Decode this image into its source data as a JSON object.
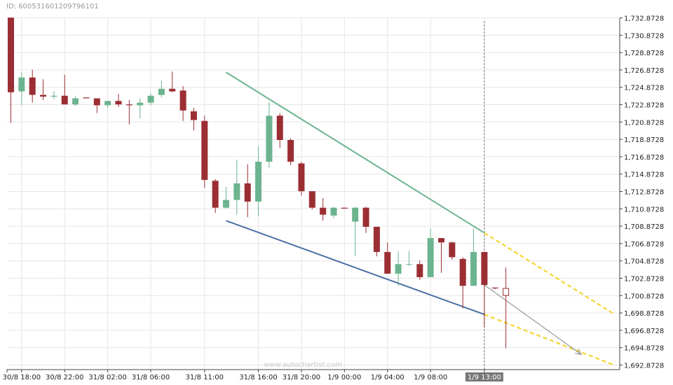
{
  "header": {
    "id_label": "ID: 6005316012097961​01"
  },
  "watermark": "www.autochartist.com",
  "chart_data": {
    "type": "candlestick",
    "y_ticks": [
      "1,732.8728",
      "1,730.8728",
      "1,728.8728",
      "1,726.8728",
      "1,724.8728",
      "1,722.8728",
      "1,720.8728",
      "1,718.8728",
      "1,716.8728",
      "1,714.8728",
      "1,712.8728",
      "1,710.8728",
      "1,708.8728",
      "1,706.8728",
      "1,704.8728",
      "1,702.8728",
      "1,700.8728",
      "1,698.8728",
      "1,696.8728",
      "1,694.8728",
      "1,692.8728"
    ],
    "ylim": [
      1692.8728,
      1732.8728
    ],
    "x_ticks": [
      {
        "label": "30/8 18:00",
        "index": 1
      },
      {
        "label": "30/8 22:00",
        "index": 5
      },
      {
        "label": "31/8 02:00",
        "index": 9
      },
      {
        "label": "31/8 06:00",
        "index": 13
      },
      {
        "label": "31/8 11:00",
        "index": 18
      },
      {
        "label": "31/8 16:00",
        "index": 23
      },
      {
        "label": "31/8 20:00",
        "index": 27
      },
      {
        "label": "1/9 00:00",
        "index": 31
      },
      {
        "label": "1/9 04:00",
        "index": 35
      },
      {
        "label": "1/9 08:00",
        "index": 39
      },
      {
        "label": "1/9 13:00",
        "index": 44,
        "highlight": true
      }
    ],
    "candles": [
      {
        "o": 1732.9,
        "h": 1732.9,
        "l": 1720.8,
        "c": 1724.3
      },
      {
        "o": 1724.4,
        "h": 1726.6,
        "l": 1722.8,
        "c": 1726.0
      },
      {
        "o": 1726.0,
        "h": 1726.9,
        "l": 1723.1,
        "c": 1724.0
      },
      {
        "o": 1724.0,
        "h": 1725.8,
        "l": 1723.4,
        "c": 1723.8
      },
      {
        "o": 1723.8,
        "h": 1724.4,
        "l": 1723.5,
        "c": 1723.9
      },
      {
        "o": 1723.9,
        "h": 1726.3,
        "l": 1722.9,
        "c": 1722.9
      },
      {
        "o": 1722.9,
        "h": 1723.9,
        "l": 1722.7,
        "c": 1723.6
      },
      {
        "o": 1723.7,
        "h": 1723.7,
        "l": 1723.6,
        "c": 1723.6
      },
      {
        "o": 1723.6,
        "h": 1723.6,
        "l": 1721.9,
        "c": 1722.8
      },
      {
        "o": 1722.8,
        "h": 1723.3,
        "l": 1722.5,
        "c": 1723.3
      },
      {
        "o": 1723.3,
        "h": 1724.1,
        "l": 1722.6,
        "c": 1722.9
      },
      {
        "o": 1722.9,
        "h": 1723.4,
        "l": 1720.6,
        "c": 1722.8
      },
      {
        "o": 1722.8,
        "h": 1723.6,
        "l": 1721.3,
        "c": 1723.1
      },
      {
        "o": 1723.1,
        "h": 1724.2,
        "l": 1722.8,
        "c": 1723.9
      },
      {
        "o": 1724.0,
        "h": 1725.6,
        "l": 1723.7,
        "c": 1724.7
      },
      {
        "o": 1724.7,
        "h": 1726.7,
        "l": 1724.3,
        "c": 1724.4
      },
      {
        "o": 1724.5,
        "h": 1725.0,
        "l": 1721.0,
        "c": 1722.2
      },
      {
        "o": 1722.1,
        "h": 1722.5,
        "l": 1719.9,
        "c": 1721.1
      },
      {
        "o": 1721.0,
        "h": 1721.6,
        "l": 1713.3,
        "c": 1714.2
      },
      {
        "o": 1714.1,
        "h": 1714.3,
        "l": 1710.4,
        "c": 1711.0
      },
      {
        "o": 1711.0,
        "h": 1713.4,
        "l": 1710.9,
        "c": 1711.9
      },
      {
        "o": 1711.9,
        "h": 1716.5,
        "l": 1710.2,
        "c": 1713.8
      },
      {
        "o": 1713.8,
        "h": 1716.0,
        "l": 1709.9,
        "c": 1711.7
      },
      {
        "o": 1711.7,
        "h": 1718.1,
        "l": 1710.0,
        "c": 1716.3
      },
      {
        "o": 1716.3,
        "h": 1723.2,
        "l": 1715.6,
        "c": 1721.6
      },
      {
        "o": 1721.6,
        "h": 1721.9,
        "l": 1717.9,
        "c": 1718.8
      },
      {
        "o": 1718.8,
        "h": 1719.0,
        "l": 1715.9,
        "c": 1716.3
      },
      {
        "o": 1716.1,
        "h": 1716.3,
        "l": 1712.4,
        "c": 1712.9
      },
      {
        "o": 1712.9,
        "h": 1712.9,
        "l": 1710.8,
        "c": 1711.0
      },
      {
        "o": 1711.0,
        "h": 1712.1,
        "l": 1709.5,
        "c": 1710.2
      },
      {
        "o": 1710.1,
        "h": 1711.1,
        "l": 1709.8,
        "c": 1711.0
      },
      {
        "o": 1711.0,
        "h": 1711.0,
        "l": 1710.9,
        "c": 1710.9
      },
      {
        "o": 1709.4,
        "h": 1711.1,
        "l": 1705.4,
        "c": 1711.0
      },
      {
        "o": 1711.0,
        "h": 1711.1,
        "l": 1708.1,
        "c": 1708.8
      },
      {
        "o": 1708.8,
        "h": 1708.8,
        "l": 1705.4,
        "c": 1705.9
      },
      {
        "o": 1705.9,
        "h": 1707.0,
        "l": 1703.4,
        "c": 1703.4
      },
      {
        "o": 1703.4,
        "h": 1706.0,
        "l": 1702.0,
        "c": 1704.5
      },
      {
        "o": 1704.5,
        "h": 1706.0,
        "l": 1704.3,
        "c": 1704.5
      },
      {
        "o": 1704.5,
        "h": 1704.9,
        "l": 1702.7,
        "c": 1703.0
      },
      {
        "o": 1703.0,
        "h": 1708.6,
        "l": 1703.0,
        "c": 1707.5
      },
      {
        "o": 1707.5,
        "h": 1707.5,
        "l": 1703.5,
        "c": 1707.0
      },
      {
        "o": 1707.0,
        "h": 1707.1,
        "l": 1705.0,
        "c": 1705.3
      },
      {
        "o": 1705.1,
        "h": 1705.3,
        "l": 1699.4,
        "c": 1702.0
      },
      {
        "o": 1702.0,
        "h": 1708.6,
        "l": 1702.0,
        "c": 1705.9
      },
      {
        "o": 1705.9,
        "h": 1705.9,
        "l": 1697.2,
        "c": 1702.1
      },
      {
        "o": 1701.8,
        "h": 1701.8,
        "l": 1701.6,
        "c": 1701.7
      },
      {
        "o": 1701.7,
        "h": 1704.1,
        "l": 1694.8,
        "c": 1700.9,
        "hollow": true
      }
    ],
    "patterns": {
      "resistance": {
        "from": [
          20,
          1726.6
        ],
        "to": [
          44,
          1708.1
        ],
        "color": "#6cb48f"
      },
      "support": {
        "from": [
          20,
          1709.5
        ],
        "to": [
          44,
          1698.7
        ],
        "color": "#4a70a6"
      },
      "resistance_projection": {
        "from": [
          44,
          1708.1
        ],
        "to": [
          56,
          1698.8
        ],
        "color": "#f4d21e"
      },
      "support_projection": {
        "from": [
          44,
          1698.7
        ],
        "to": [
          56,
          1692.9
        ],
        "color": "#f4d21e"
      },
      "forecast_arrow": {
        "from": [
          44,
          1702.1
        ],
        "to": [
          53,
          1694.1
        ],
        "color": "#888888"
      }
    },
    "marker_index": 44,
    "colors": {
      "up": "#6cb48f",
      "down": "#9b2e33",
      "grid": "#e6e6e6",
      "axis_text": "#222222",
      "highlight_bg": "#777777"
    }
  }
}
